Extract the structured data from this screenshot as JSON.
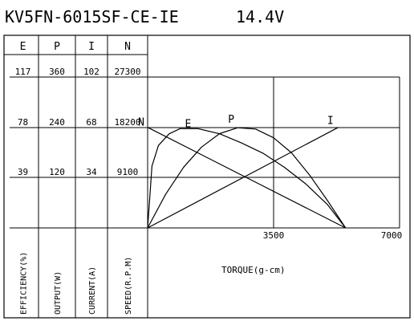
{
  "chart_data": {
    "type": "line",
    "title": "KV5FN-6015SF-CE-IE",
    "subtitle": "14.4V",
    "xlabel": "TORQUE(g-cm)",
    "xlim": [
      0,
      7000
    ],
    "x_ticks": [
      "3500",
      "7000"
    ],
    "grid": true,
    "columns": [
      {
        "header": "E",
        "axis_label": "EFFICIENCY(%)",
        "ticks": [
          "117",
          "78",
          "39"
        ],
        "max": 117
      },
      {
        "header": "P",
        "axis_label": "OUTPUT(W)",
        "ticks": [
          "360",
          "240",
          "120"
        ],
        "max": 360
      },
      {
        "header": "I",
        "axis_label": "CURRENT(A)",
        "ticks": [
          "102",
          "68",
          "34"
        ],
        "max": 102
      },
      {
        "header": "N",
        "axis_label": "SPEED(R.P.M)",
        "ticks": [
          "27300",
          "18200",
          "9100"
        ],
        "max": 27300
      }
    ],
    "series": [
      {
        "name": "N",
        "column": 3,
        "x": [
          0,
          5500
        ],
        "y": [
          18200,
          0
        ]
      },
      {
        "name": "E",
        "column": 0,
        "x": [
          0,
          120,
          300,
          600,
          900,
          1400,
          2000,
          2600,
          3200,
          3800,
          4400,
          5000,
          5500
        ],
        "y": [
          0,
          48,
          64,
          73,
          77,
          77,
          73,
          66,
          58,
          47,
          34,
          18,
          0
        ]
      },
      {
        "name": "P",
        "column": 1,
        "x": [
          0,
          500,
          1000,
          1500,
          2000,
          2500,
          3000,
          3500,
          4000,
          4500,
          5000,
          5500
        ],
        "y": [
          0,
          80,
          145,
          193,
          225,
          239,
          236,
          215,
          179,
          126,
          65,
          0
        ]
      },
      {
        "name": "I",
        "column": 2,
        "x": [
          0,
          5300
        ],
        "y": [
          0,
          68
        ]
      }
    ]
  }
}
